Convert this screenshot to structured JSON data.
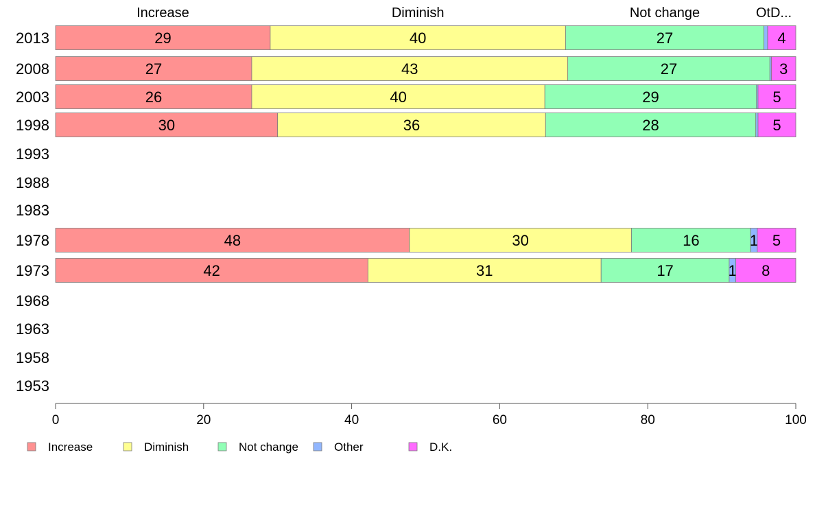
{
  "chart_data": {
    "type": "bar",
    "orientation": "horizontal",
    "stacked": true,
    "title": "",
    "xlabel": "",
    "ylabel": "",
    "xlim": [
      0,
      100
    ],
    "x_ticks": [
      "0",
      "20",
      "40",
      "60",
      "80",
      "100"
    ],
    "grid": false,
    "legend_position": "bottom-left",
    "categories": [
      "2013",
      "2008",
      "2003",
      "1998",
      "1993",
      "1988",
      "1983",
      "1978",
      "1973",
      "1968",
      "1963",
      "1958",
      "1953"
    ],
    "column_headers": [
      "Increase",
      "Diminish",
      "Not change",
      "OtD..."
    ],
    "series": [
      {
        "name": "Increase",
        "color": "#ff9191",
        "values": [
          29,
          26.5,
          26.5,
          30,
          null,
          null,
          null,
          47.8,
          42.2,
          null,
          null,
          null,
          null
        ]
      },
      {
        "name": "Diminish",
        "color": "#ffff91",
        "values": [
          39.9,
          42.7,
          39.6,
          36.2,
          null,
          null,
          null,
          30,
          31.5,
          null,
          null,
          null,
          null
        ]
      },
      {
        "name": "Not change",
        "color": "#91ffb6",
        "values": [
          26.8,
          27.3,
          28.6,
          28.4,
          null,
          null,
          null,
          16.1,
          17.3,
          null,
          null,
          null,
          null
        ]
      },
      {
        "name": "Other",
        "color": "#91b6ff",
        "values": [
          0.5,
          0.2,
          0.2,
          0.3,
          null,
          null,
          null,
          0.9,
          0.9,
          null,
          null,
          null,
          null
        ]
      },
      {
        "name": "D.K.",
        "color": "#ff6bff",
        "values": [
          3.8,
          3.3,
          5.1,
          5.1,
          null,
          null,
          null,
          5.2,
          8.1,
          null,
          null,
          null,
          null
        ]
      }
    ],
    "data_labels": [
      [
        "29",
        "40",
        "27",
        "",
        "4"
      ],
      [
        "27",
        "43",
        "27",
        "",
        "3"
      ],
      [
        "26",
        "40",
        "29",
        "",
        "5"
      ],
      [
        "30",
        "36",
        "28",
        "",
        "5"
      ],
      [],
      [],
      [],
      [
        "48",
        "30",
        "16",
        "1",
        "5"
      ],
      [
        "42",
        "31",
        "17",
        "1",
        "8"
      ],
      [],
      [],
      [],
      []
    ]
  }
}
